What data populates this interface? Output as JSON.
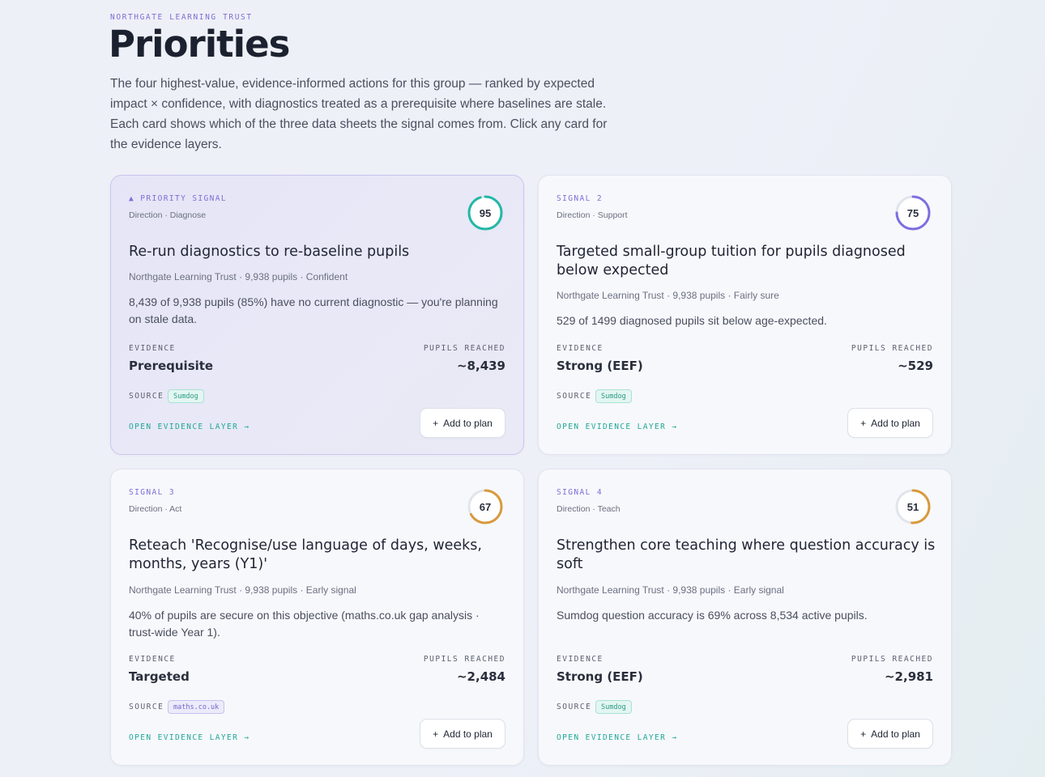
{
  "header": {
    "eyebrow": "NORTHGATE LEARNING TRUST",
    "title": "Priorities",
    "intro": "The four highest-value, evidence-informed actions for this group — ranked by expected impact × confidence, with diagnostics treated as a prerequisite where baselines are stale. Each card shows which of the three data sheets the signal comes from. Click any card for the evidence layers."
  },
  "labels": {
    "evidence": "EVIDENCE",
    "pupils_reached": "PUPILS REACHED",
    "source": "SOURCE",
    "open_evidence": "OPEN EVIDENCE LAYER →",
    "add_to_plan": "Add to plan",
    "plus_icon": "+"
  },
  "colors": {
    "accent": "#7c6fd4",
    "teal": "#22b8a6",
    "amber": "#d99a3b",
    "purple_ring": "#7d6fe0"
  },
  "cards": [
    {
      "signal": "▲ PRIORITY SIGNAL",
      "direction": "Direction · Diagnose",
      "score": "95",
      "score_fraction": 0.95,
      "ring_color": "#22b8a6",
      "title": "Re-run diagnostics to re-baseline pupils",
      "meta": "Northgate Learning Trust · 9,938 pupils · Confident",
      "description": "8,439 of 9,938 pupils (85%) have no current diagnostic — you're planning on stale data.",
      "evidence": "Prerequisite",
      "reached": "~8,439",
      "source": "Sumdog",
      "source_style": "teal"
    },
    {
      "signal": "SIGNAL 2",
      "direction": "Direction · Support",
      "score": "75",
      "score_fraction": 0.75,
      "ring_color": "#7d6fe0",
      "title": "Targeted small-group tuition for pupils diagnosed below expected",
      "meta": "Northgate Learning Trust · 9,938 pupils · Fairly sure",
      "description": "529 of 1499 diagnosed pupils sit below age-expected.",
      "evidence": "Strong (EEF)",
      "reached": "~529",
      "source": "Sumdog",
      "source_style": "teal"
    },
    {
      "signal": "SIGNAL 3",
      "direction": "Direction · Act",
      "score": "67",
      "score_fraction": 0.67,
      "ring_color": "#d99a3b",
      "title": "Reteach 'Recognise/use language of days, weeks, months, years (Y1)'",
      "meta": "Northgate Learning Trust · 9,938 pupils · Early signal",
      "description": "40% of pupils are secure on this objective (maths.co.uk gap analysis · trust-wide Year 1).",
      "evidence": "Targeted",
      "reached": "~2,484",
      "source": "maths.co.uk",
      "source_style": "purple"
    },
    {
      "signal": "SIGNAL 4",
      "direction": "Direction · Teach",
      "score": "51",
      "score_fraction": 0.51,
      "ring_color": "#d99a3b",
      "title": "Strengthen core teaching where question accuracy is soft",
      "meta": "Northgate Learning Trust · 9,938 pupils · Early signal",
      "description": "Sumdog question accuracy is 69% across 8,534 active pupils.",
      "evidence": "Strong (EEF)",
      "reached": "~2,981",
      "source": "Sumdog",
      "source_style": "teal"
    }
  ]
}
